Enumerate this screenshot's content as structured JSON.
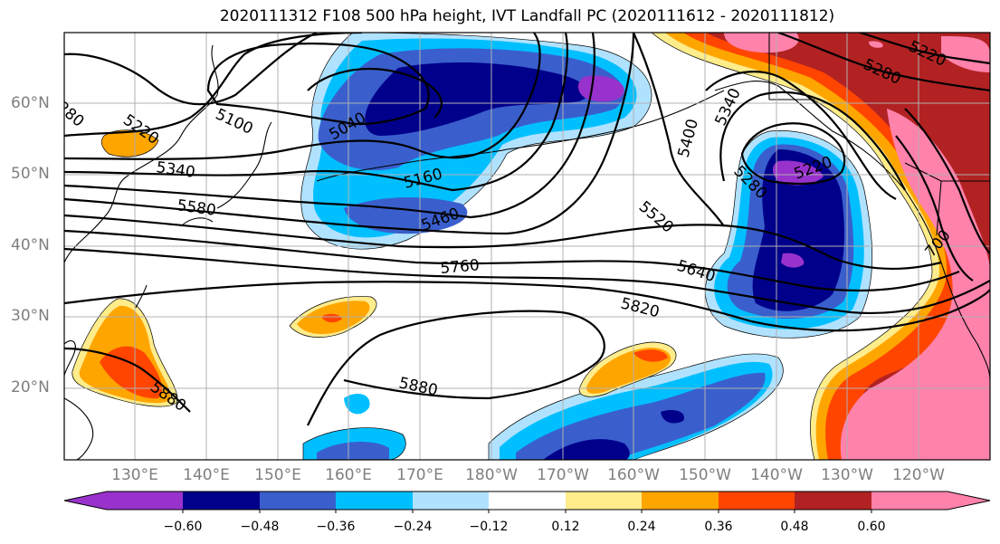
{
  "title": "2020111312 F108 500 hPa height, IVT Landfall PC (2020111612 - 2020111812)",
  "map": {
    "lat_labels": [
      "60°N",
      "50°N",
      "40°N",
      "30°N",
      "20°N"
    ],
    "lon_labels": [
      "130°E",
      "140°E",
      "150°E",
      "160°E",
      "170°E",
      "180°W",
      "170°W",
      "160°W",
      "150°W",
      "140°W",
      "130°W",
      "120°W"
    ],
    "grid": true,
    "contour_color": "#000000",
    "contour_labels": [
      "5220",
      "5280",
      "5340",
      "5580",
      "5100",
      "5040",
      "5160",
      "5460",
      "5760",
      "5880",
      "5820",
      "5640",
      "5520",
      "5400",
      "5340",
      "5280",
      "5220",
      "5220",
      "5280",
      "5880",
      "280",
      "700"
    ]
  },
  "colorbar": {
    "colors": [
      "#9932cc",
      "#00008b",
      "#3a5fcd",
      "#00bfff",
      "#b0e2ff",
      "#ffffff",
      "#ffec8b",
      "#ffa500",
      "#ff4500",
      "#b22222",
      "#ff82ab"
    ],
    "tick_labels": [
      "−0.60",
      "−0.48",
      "−0.36",
      "−0.24",
      "−0.12",
      "0.12",
      "0.24",
      "0.36",
      "0.48",
      "0.60"
    ],
    "extend": "both"
  }
}
